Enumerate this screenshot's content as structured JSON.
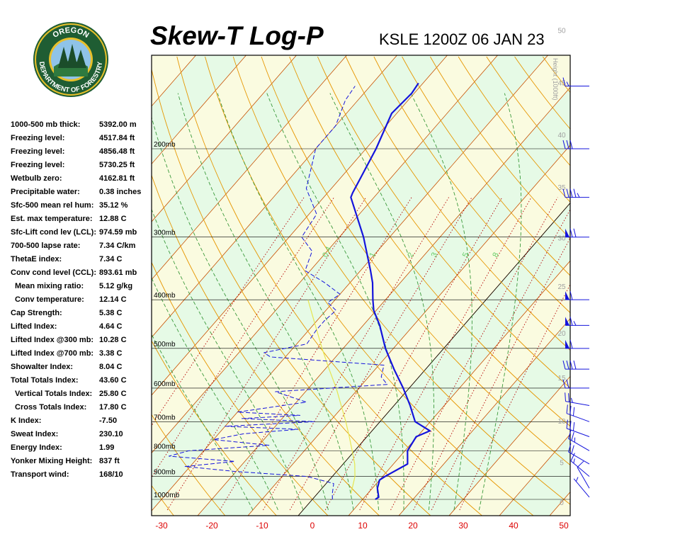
{
  "header": {
    "title": "Skew-T Log-P",
    "station": "KSLE 1200Z 06 JAN 23"
  },
  "logo": {
    "top_text": "OREGON",
    "bottom_text": "DEPARTMENT OF FORESTRY",
    "colors": {
      "ring": "#1f5d33",
      "gold": "#e8c02a",
      "sky": "#8fc3e8"
    }
  },
  "indices": [
    {
      "label": "1000-500 mb thick:",
      "value": "5392.00 m",
      "indent": false
    },
    {
      "label": "Freezing level:",
      "value": "4517.84 ft",
      "indent": false
    },
    {
      "label": "Freezing level:",
      "value": "4856.48 ft",
      "indent": false
    },
    {
      "label": "Freezing level:",
      "value": "5730.25 ft",
      "indent": false
    },
    {
      "label": "Wetbulb zero:",
      "value": "4162.81 ft",
      "indent": false
    },
    {
      "label": "Precipitable water:",
      "value": "0.38 inches",
      "indent": false
    },
    {
      "label": "Sfc-500 mean rel hum:",
      "value": "35.12 %",
      "indent": false
    },
    {
      "label": "Est. max temperature:",
      "value": "12.88 C",
      "indent": false
    },
    {
      "label": "Sfc-Lift cond lev (LCL):",
      "value": "974.59 mb",
      "indent": false
    },
    {
      "label": "700-500 lapse rate:",
      "value": "7.34 C/km",
      "indent": false
    },
    {
      "label": "ThetaE index:",
      "value": "7.34 C",
      "indent": false
    },
    {
      "label": "Conv cond level (CCL):",
      "value": "893.61 mb",
      "indent": false
    },
    {
      "label": "Mean mixing ratio:",
      "value": "5.12 g/kg",
      "indent": true
    },
    {
      "label": "Conv temperature:",
      "value": "12.14 C",
      "indent": true
    },
    {
      "label": "Cap Strength:",
      "value": "5.38 C",
      "indent": false
    },
    {
      "label": "Lifted Index:",
      "value": "4.64 C",
      "indent": false
    },
    {
      "label": "Lifted Index @300 mb:",
      "value": "10.28 C",
      "indent": false
    },
    {
      "label": "Lifted Index @700 mb:",
      "value": "3.38 C",
      "indent": false
    },
    {
      "label": "Showalter Index:",
      "value": "8.04 C",
      "indent": false
    },
    {
      "label": "Total Totals Index:",
      "value": "43.60 C",
      "indent": false
    },
    {
      "label": "Vertical Totals Index:",
      "value": "25.80 C",
      "indent": true
    },
    {
      "label": "Cross Totals Index:",
      "value": "17.80 C",
      "indent": true
    },
    {
      "label": "K Index:",
      "value": "-7.50",
      "indent": false
    },
    {
      "label": "Sweat Index:",
      "value": "230.10",
      "indent": false
    },
    {
      "label": "Energy Index:",
      "value": "1.99",
      "indent": false
    },
    {
      "label": "Yonker Mixing Height:",
      "value": "837 ft",
      "indent": false
    },
    {
      "label": "Transport wind:",
      "value": "168/10",
      "indent": false
    }
  ],
  "chart_data": {
    "type": "skew-t log-p",
    "x_ticks": [
      -30,
      -20,
      -10,
      0,
      10,
      20,
      30,
      40,
      50
    ],
    "x_tick_labels": [
      "-30",
      "-20",
      "-10",
      "0",
      "10",
      "20",
      "30",
      "40",
      "50"
    ],
    "xlim": [
      -33,
      53
    ],
    "pressure_levels": [
      1000,
      900,
      800,
      700,
      600,
      500,
      400,
      300,
      200
    ],
    "pressure_labels": [
      "1000mb",
      "900mb",
      "800mb",
      "700mb",
      "600mb",
      "500mb",
      "400mb",
      "300mb",
      "200mb"
    ],
    "height_axis_label": "Height (1000ft)",
    "height_ticks": [
      0,
      5,
      10,
      15,
      20,
      25,
      30,
      35,
      40,
      45,
      50
    ],
    "mixing_ratio_labels": [
      "0.4",
      "1",
      "2",
      "3",
      "5",
      "8"
    ],
    "temperature": [
      {
        "p": 1000,
        "t": 12.5
      },
      {
        "p": 990,
        "t": 12.8
      },
      {
        "p": 950,
        "t": 11.0
      },
      {
        "p": 915,
        "t": 10.0
      },
      {
        "p": 900,
        "t": 10.5
      },
      {
        "p": 850,
        "t": 12.8
      },
      {
        "p": 800,
        "t": 10.5
      },
      {
        "p": 750,
        "t": 9.8
      },
      {
        "p": 730,
        "t": 11.5
      },
      {
        "p": 700,
        "t": 7.0
      },
      {
        "p": 650,
        "t": 3.2
      },
      {
        "p": 600,
        "t": -1.2
      },
      {
        "p": 550,
        "t": -6.3
      },
      {
        "p": 500,
        "t": -11.6
      },
      {
        "p": 450,
        "t": -16.7
      },
      {
        "p": 420,
        "t": -20.5
      },
      {
        "p": 400,
        "t": -22.5
      },
      {
        "p": 370,
        "t": -25.5
      },
      {
        "p": 350,
        "t": -28.0
      },
      {
        "p": 300,
        "t": -35.2
      },
      {
        "p": 250,
        "t": -44.6
      },
      {
        "p": 245,
        "t": -45.0
      },
      {
        "p": 200,
        "t": -48.0
      },
      {
        "p": 170,
        "t": -51.0
      },
      {
        "p": 155,
        "t": -50.5
      },
      {
        "p": 148,
        "t": -50.9
      }
    ],
    "dewpoint": [
      {
        "p": 1000,
        "t": 4.0
      },
      {
        "p": 975,
        "t": 3.0
      },
      {
        "p": 930,
        "t": 1.5
      },
      {
        "p": 900,
        "t": -5.0
      },
      {
        "p": 880,
        "t": -20.0
      },
      {
        "p": 860,
        "t": -31.0
      },
      {
        "p": 840,
        "t": -22.0
      },
      {
        "p": 820,
        "t": -36.0
      },
      {
        "p": 800,
        "t": -33.0
      },
      {
        "p": 780,
        "t": -18.0
      },
      {
        "p": 760,
        "t": -30.0
      },
      {
        "p": 740,
        "t": -25.0
      },
      {
        "p": 725,
        "t": -15.0
      },
      {
        "p": 715,
        "t": -30.0
      },
      {
        "p": 700,
        "t": -13.0
      },
      {
        "p": 690,
        "t": -28.0
      },
      {
        "p": 680,
        "t": -17.0
      },
      {
        "p": 670,
        "t": -30.0
      },
      {
        "p": 640,
        "t": -18.0
      },
      {
        "p": 610,
        "t": -26.0
      },
      {
        "p": 590,
        "t": -5.0
      },
      {
        "p": 570,
        "t": -7.5
      },
      {
        "p": 540,
        "t": -9.0
      },
      {
        "p": 520,
        "t": -33.0
      },
      {
        "p": 510,
        "t": -35.0
      },
      {
        "p": 490,
        "t": -28.0
      },
      {
        "p": 460,
        "t": -28.5
      },
      {
        "p": 440,
        "t": -28.5
      },
      {
        "p": 420,
        "t": -28.0
      },
      {
        "p": 405,
        "t": -31.0
      },
      {
        "p": 390,
        "t": -30.0
      },
      {
        "p": 370,
        "t": -35.0
      },
      {
        "p": 350,
        "t": -41.0
      },
      {
        "p": 320,
        "t": -43.0
      },
      {
        "p": 300,
        "t": -47.5
      },
      {
        "p": 270,
        "t": -48.5
      },
      {
        "p": 240,
        "t": -55.0
      },
      {
        "p": 215,
        "t": -58.0
      },
      {
        "p": 200,
        "t": -60.0
      },
      {
        "p": 180,
        "t": -60.0
      },
      {
        "p": 160,
        "t": -62.5
      },
      {
        "p": 150,
        "t": -63.0
      }
    ],
    "parcel": [
      {
        "p": 975,
        "t": 6.7
      },
      {
        "p": 950,
        "t": 6.0
      },
      {
        "p": 900,
        "t": 4.5
      },
      {
        "p": 850,
        "t": 2.3
      },
      {
        "p": 800,
        "t": -0.5
      },
      {
        "p": 750,
        "t": -3.5
      },
      {
        "p": 700,
        "t": -6.8
      },
      {
        "p": 650,
        "t": -10.5
      },
      {
        "p": 600,
        "t": -14.5
      },
      {
        "p": 550,
        "t": -19.2
      },
      {
        "p": 500,
        "t": -24.2
      },
      {
        "p": 450,
        "t": -29.5
      },
      {
        "p": 400,
        "t": -35.4
      }
    ],
    "wind_barbs": [
      {
        "p": 990,
        "dir": 320,
        "spd": 5
      },
      {
        "p": 950,
        "dir": 330,
        "spd": 10
      },
      {
        "p": 900,
        "dir": 310,
        "spd": 15
      },
      {
        "p": 850,
        "dir": 300,
        "spd": 20
      },
      {
        "p": 800,
        "dir": 300,
        "spd": 25
      },
      {
        "p": 750,
        "dir": 290,
        "spd": 30
      },
      {
        "p": 700,
        "dir": 290,
        "spd": 30
      },
      {
        "p": 650,
        "dir": 280,
        "spd": 25
      },
      {
        "p": 600,
        "dir": 270,
        "spd": 20
      },
      {
        "p": 550,
        "dir": 270,
        "spd": 40
      },
      {
        "p": 500,
        "dir": 270,
        "spd": 60
      },
      {
        "p": 450,
        "dir": 270,
        "spd": 65
      },
      {
        "p": 400,
        "dir": 270,
        "spd": 60
      },
      {
        "p": 300,
        "dir": 270,
        "spd": 70
      },
      {
        "p": 250,
        "dir": 270,
        "spd": 45
      },
      {
        "p": 200,
        "dir": 270,
        "spd": 30
      },
      {
        "p": 150,
        "dir": 270,
        "spd": 15
      }
    ],
    "colors": {
      "temperature": "#1414dc",
      "dewpoint": "#1414dc",
      "parcel": "#e6e650",
      "isotherm": "#c85000",
      "dry_adiabat": "#e69600",
      "moist_adiabat": "#3c9a3c",
      "mixing_ratio": "#b40000",
      "isobar": "#000000",
      "tick_label": "#dc0000",
      "height_label": "#a0a0a0",
      "band_warm": "#fafbe0",
      "band_cool": "#e6fae6",
      "wind_barb": "#1414dc"
    }
  }
}
